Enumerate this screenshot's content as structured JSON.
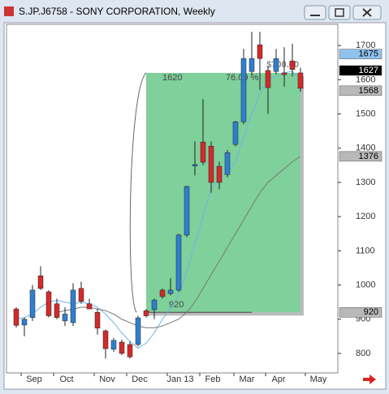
{
  "chart_data": {
    "type": "candlestick",
    "title": "S.JP.J6758 - SONY CORPORATION, Weekly",
    "x": [
      0,
      1,
      2,
      3,
      4,
      5,
      6,
      7,
      8,
      9,
      10,
      11,
      12,
      13,
      14,
      15,
      16,
      17,
      18,
      19,
      20,
      21,
      22,
      23,
      24,
      25,
      26,
      27,
      28,
      29,
      30,
      31,
      32,
      33,
      34,
      35
    ],
    "open": [
      930,
      883,
      905,
      1027,
      980,
      945,
      895,
      890,
      990,
      945,
      920,
      866,
      812,
      833,
      826,
      826,
      925,
      928,
      985,
      975,
      985,
      1146,
      1348,
      1418,
      1406,
      1347,
      1323,
      1411,
      1477,
      1624,
      1702,
      1627,
      1624,
      1620,
      1655,
      1620
    ],
    "high": [
      935,
      905,
      1000,
      1055,
      985,
      960,
      935,
      1005,
      1010,
      960,
      930,
      870,
      845,
      840,
      835,
      910,
      930,
      960,
      990,
      1020,
      1150,
      1290,
      1420,
      1543,
      1420,
      1360,
      1395,
      1480,
      1690,
      1740,
      1740,
      1640,
      1690,
      1695,
      1705,
      1635
    ],
    "low": [
      876,
      850,
      895,
      985,
      905,
      900,
      880,
      880,
      945,
      930,
      855,
      785,
      805,
      795,
      785,
      820,
      905,
      900,
      960,
      970,
      980,
      1140,
      1320,
      1350,
      1270,
      1280,
      1315,
      1405,
      1470,
      1615,
      1570,
      1500,
      1615,
      1580,
      1610,
      1565
    ],
    "close": [
      882,
      900,
      985,
      990,
      910,
      905,
      915,
      985,
      952,
      930,
      874,
      814,
      838,
      800,
      790,
      904,
      910,
      956,
      966,
      985,
      1146,
      1288,
      1352,
      1359,
      1300,
      1300,
      1387,
      1477,
      1662,
      1662,
      1662,
      1577,
      1662,
      1615,
      1630,
      1575
    ],
    "up_color": "#2f7fd0",
    "down_color": "#d42a2a",
    "series": [
      {
        "color": "#6fb3e8",
        "values": [
          900,
          905,
          915,
          935,
          950,
          955,
          950,
          945,
          950,
          945,
          935,
          915,
          890,
          860,
          835,
          815,
          830,
          860,
          900,
          930,
          970,
          1040,
          1120,
          1200,
          1280,
          1310,
          1330,
          1360,
          1430,
          1500,
          1560,
          1600,
          1610,
          1620,
          1625,
          1600
        ]
      },
      {
        "color": "#777777",
        "values": [
          null,
          null,
          null,
          null,
          null,
          920,
          925,
          930,
          935,
          935,
          930,
          925,
          915,
          900,
          890,
          880,
          875,
          875,
          880,
          890,
          900,
          920,
          950,
          990,
          1030,
          1070,
          1110,
          1150,
          1190,
          1230,
          1270,
          1300,
          1320,
          1340,
          1360,
          1376
        ]
      }
    ],
    "xlim": [
      -1.2,
      39.6
    ],
    "xticks": [
      {
        "value": 2.2,
        "label": "Sep"
      },
      {
        "value": 6.2,
        "label": "Oct"
      },
      {
        "value": 11.2,
        "label": "Nov"
      },
      {
        "value": 15.2,
        "label": "Dec"
      },
      {
        "value": 20.2,
        "label": "Jan 13"
      },
      {
        "value": 24.2,
        "label": "Feb"
      },
      {
        "value": 28.4,
        "label": "Mar"
      },
      {
        "value": 32.3,
        "label": "Apr"
      },
      {
        "value": 37.2,
        "label": "May"
      }
    ],
    "ylim": [
      743,
      1762
    ],
    "yticks": [
      800,
      900,
      1000,
      1100,
      1200,
      1300,
      1400,
      1500,
      1600,
      1700
    ],
    "price_markers": [
      {
        "value": 1675,
        "color": "#8fc3ee",
        "text_color": "#000000"
      },
      {
        "value": 1627,
        "color": "#000000",
        "text_color": "#ffffff"
      },
      {
        "value": 1568,
        "color": "#b8b8b8",
        "text_color": "#000000"
      },
      {
        "value": 1376,
        "color": "#b8b8b8",
        "text_color": "#000000"
      },
      {
        "value": 920,
        "color": "#b8b8b8",
        "text_color": "#000000"
      }
    ],
    "measure": {
      "x": [
        16,
        35
      ],
      "high": 1620,
      "low": 920,
      "amount_label": "$700.00",
      "percent_label": "76.09 %",
      "color": "#7fd09a"
    }
  }
}
